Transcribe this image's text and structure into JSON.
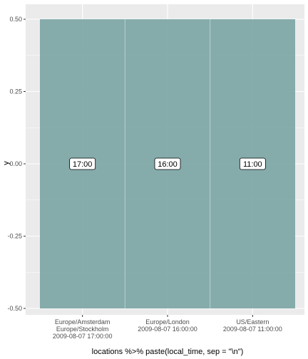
{
  "chart_data": {
    "type": "bar",
    "title": "",
    "xlabel": "locations %>% paste(local_time, sep = \"\\n\")",
    "ylabel": "y",
    "ylim": [
      -0.5,
      0.5
    ],
    "yticks": [
      "0.50",
      "0.25",
      "0.00",
      "-0.25",
      "-0.50"
    ],
    "ytick_values": [
      0.5,
      0.25,
      0.0,
      -0.25,
      -0.5
    ],
    "categories": [
      {
        "lines": [
          "Europe/Amsterdam",
          "Europe/Stockholm",
          "2009-08-07 17:00:00"
        ]
      },
      {
        "lines": [
          "Europe/London",
          "2009-08-07 16:00:00"
        ]
      },
      {
        "lines": [
          "US/Eastern",
          "2009-08-07 11:00:00"
        ]
      }
    ],
    "tiles": [
      {
        "ymin": -0.5,
        "ymax": 0.5,
        "label_y": 0.0,
        "label": "17:00"
      },
      {
        "ymin": -0.5,
        "ymax": 0.5,
        "label_y": 0.0,
        "label": "16:00"
      },
      {
        "ymin": -0.5,
        "ymax": 0.5,
        "label_y": 0.0,
        "label": "11:00"
      }
    ],
    "grid": true,
    "colors": {
      "panel": "#ebebeb",
      "grid": "#ffffff",
      "tile_fill": "#7fa9a8",
      "label_fill": "#ffffff",
      "label_border": "#000000"
    }
  }
}
